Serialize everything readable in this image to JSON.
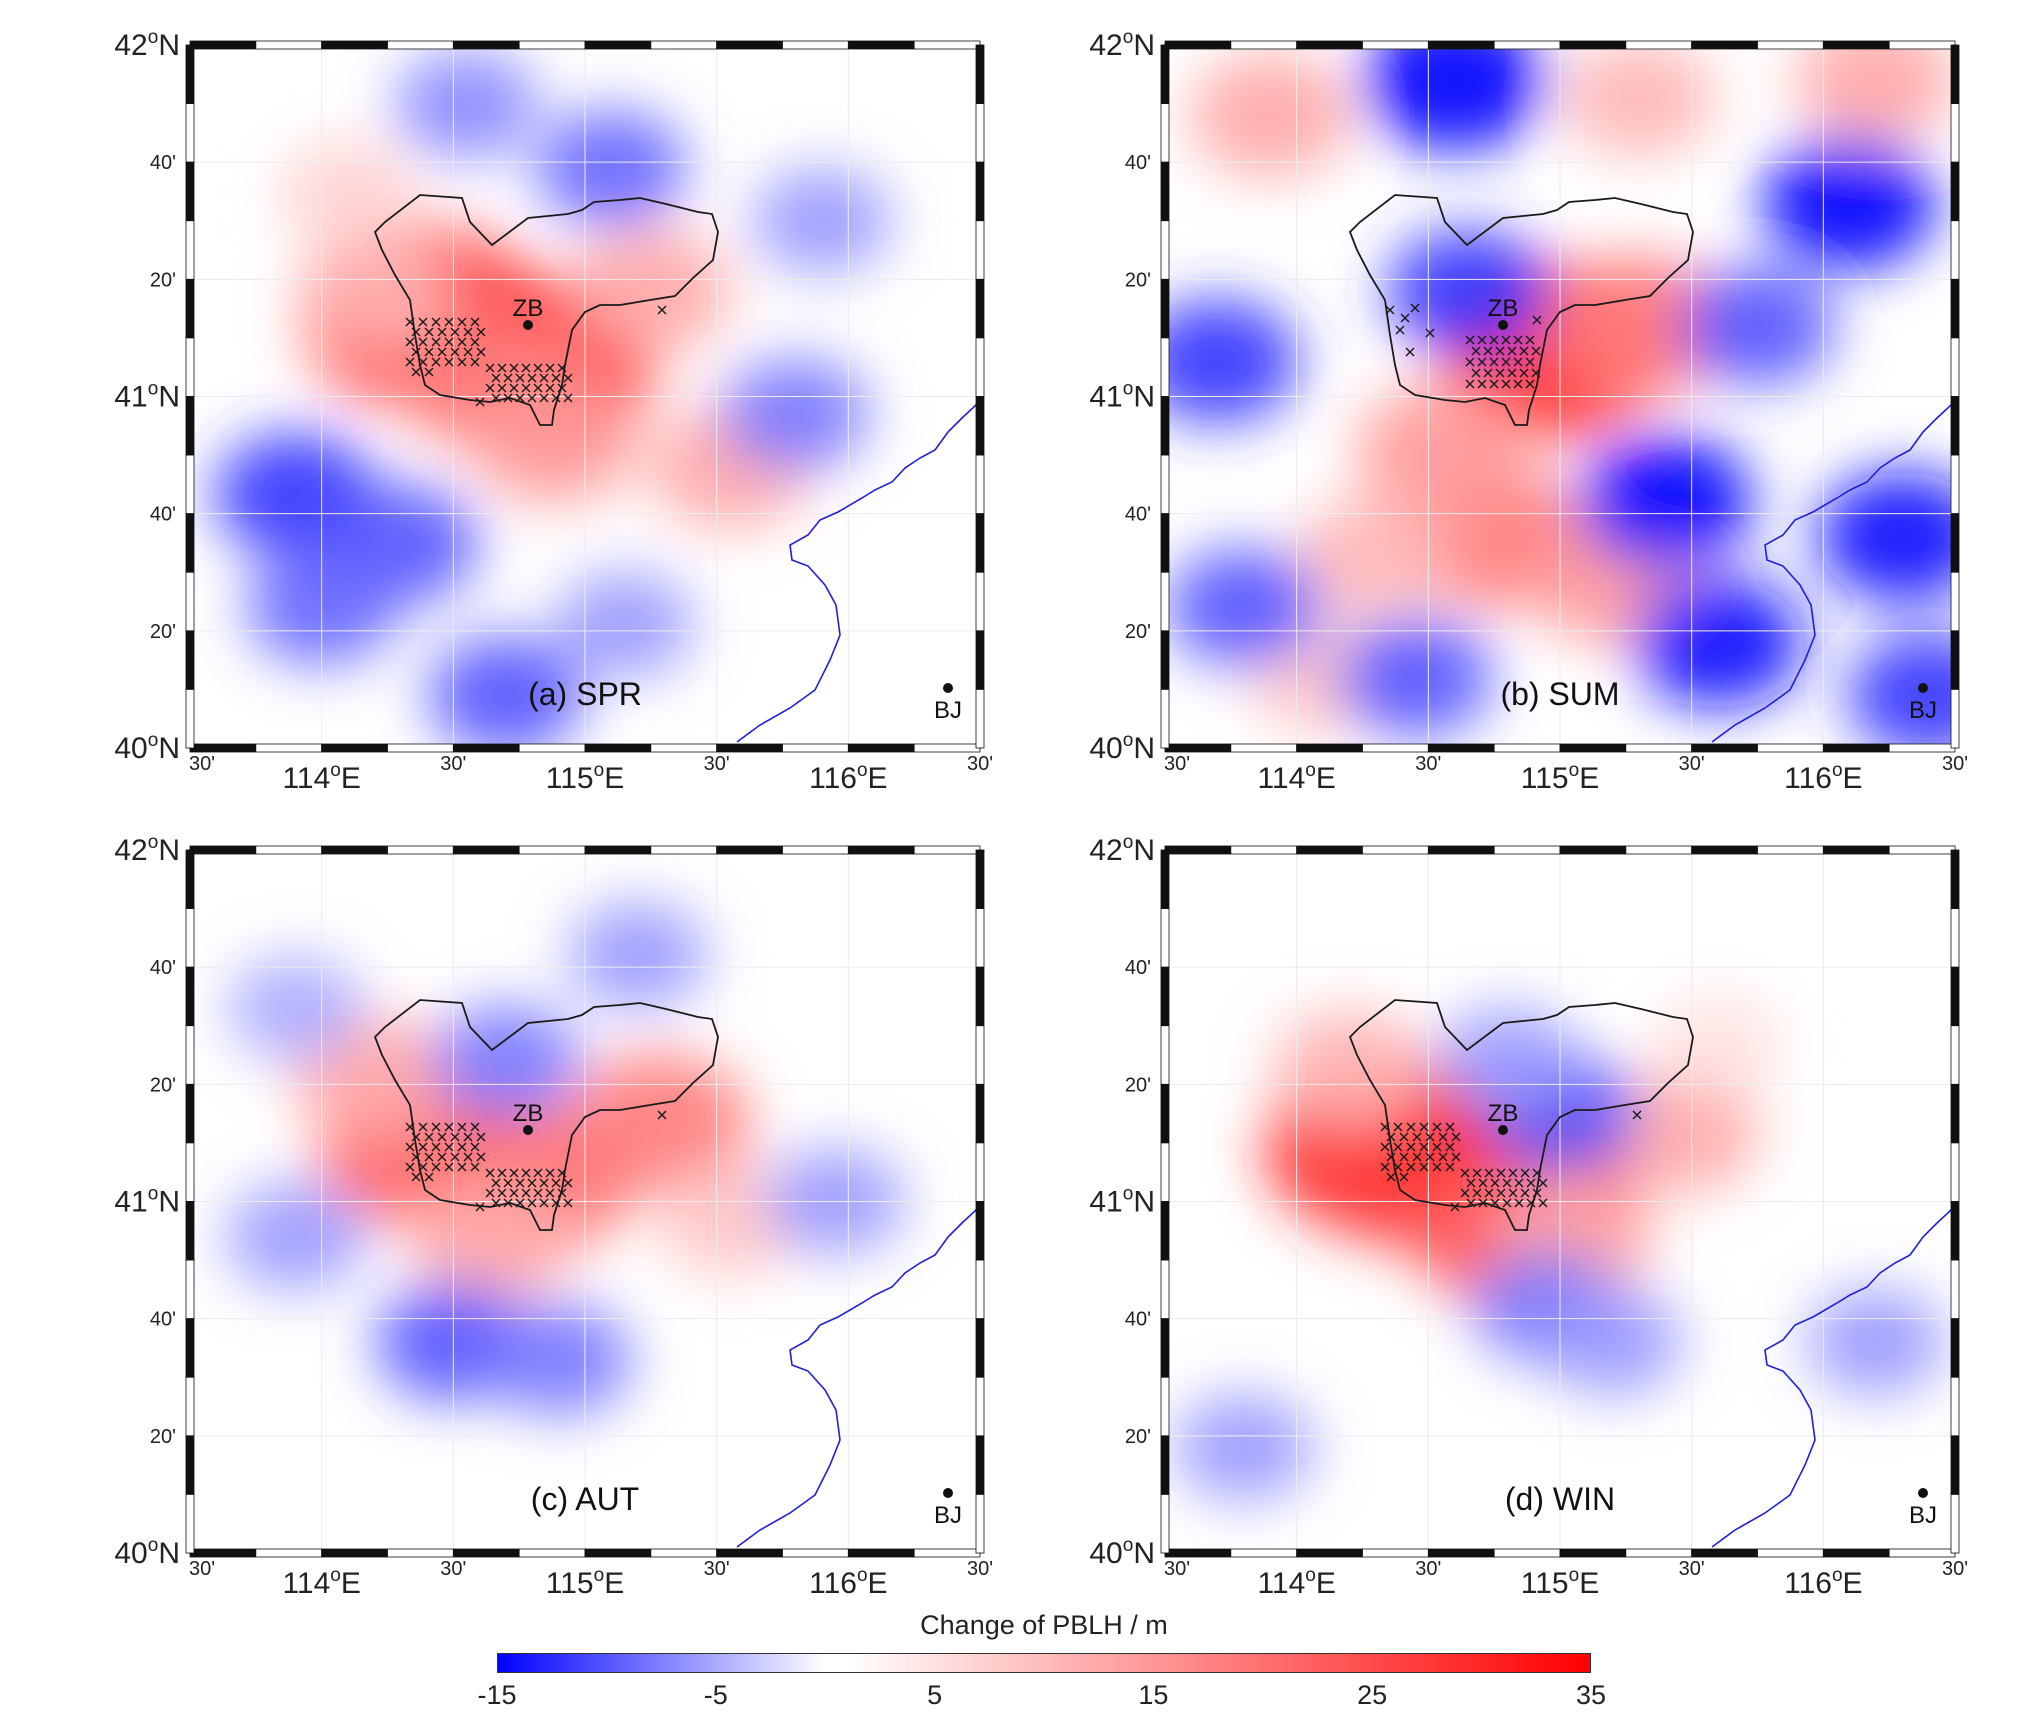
{
  "axes": {
    "lat_major": [
      "42",
      "41",
      "40"
    ],
    "lat_minor": [
      "40'",
      "20'",
      "40'",
      "20'"
    ],
    "lon_major": [
      "114",
      "115",
      "116"
    ],
    "lon_minor": [
      "30'",
      "30'",
      "30'",
      "30'"
    ],
    "deg": "o",
    "north": "N",
    "east": "E"
  },
  "cities": {
    "zb": "ZB",
    "bj": "BJ"
  },
  "panels": [
    {
      "label": "(a) SPR",
      "blobs": [
        {
          "lon": 114.37,
          "lat": 41.23,
          "value": 32
        },
        {
          "lon": 114.52,
          "lat": 41.2,
          "value": 24
        },
        {
          "lon": 114.83,
          "lat": 41.09,
          "value": 30
        },
        {
          "lon": 114.62,
          "lat": 41.06,
          "value": 18
        },
        {
          "lon": 114.88,
          "lat": 40.88,
          "value": 14
        },
        {
          "lon": 115.25,
          "lat": 41.3,
          "value": 12
        },
        {
          "lon": 115.55,
          "lat": 40.8,
          "value": 12
        },
        {
          "lon": 114.2,
          "lat": 41.3,
          "value": 10
        },
        {
          "lon": 114.1,
          "lat": 41.58,
          "value": 6
        },
        {
          "lon": 113.9,
          "lat": 40.72,
          "value": -12
        },
        {
          "lon": 114.3,
          "lat": 40.58,
          "value": -10
        },
        {
          "lon": 114.0,
          "lat": 40.4,
          "value": -9
        },
        {
          "lon": 115.1,
          "lat": 41.65,
          "value": -9
        },
        {
          "lon": 115.8,
          "lat": 40.95,
          "value": -8
        },
        {
          "lon": 115.9,
          "lat": 41.5,
          "value": -6
        },
        {
          "lon": 114.55,
          "lat": 41.83,
          "value": -7
        },
        {
          "lon": 114.7,
          "lat": 40.15,
          "value": -10
        },
        {
          "lon": 115.15,
          "lat": 40.35,
          "value": -6
        }
      ]
    },
    {
      "label": "(b) SUM",
      "blobs": [
        {
          "lon": 114.98,
          "lat": 41.13,
          "value": 30
        },
        {
          "lon": 114.75,
          "lat": 40.6,
          "value": 18
        },
        {
          "lon": 115.2,
          "lat": 40.48,
          "value": 14
        },
        {
          "lon": 114.55,
          "lat": 40.85,
          "value": 14
        },
        {
          "lon": 115.3,
          "lat": 41.2,
          "value": 18
        },
        {
          "lon": 113.9,
          "lat": 41.8,
          "value": 12
        },
        {
          "lon": 115.3,
          "lat": 41.85,
          "value": 10
        },
        {
          "lon": 116.2,
          "lat": 41.9,
          "value": 12
        },
        {
          "lon": 114.3,
          "lat": 40.55,
          "value": 10
        },
        {
          "lon": 114.1,
          "lat": 40.2,
          "value": 8
        },
        {
          "lon": 114.6,
          "lat": 41.9,
          "value": -18
        },
        {
          "lon": 115.4,
          "lat": 40.7,
          "value": -15
        },
        {
          "lon": 116.1,
          "lat": 41.55,
          "value": -15
        },
        {
          "lon": 113.7,
          "lat": 41.1,
          "value": -12
        },
        {
          "lon": 115.6,
          "lat": 40.3,
          "value": -14
        },
        {
          "lon": 116.3,
          "lat": 40.6,
          "value": -14
        },
        {
          "lon": 113.8,
          "lat": 40.4,
          "value": -10
        },
        {
          "lon": 114.65,
          "lat": 41.3,
          "value": -12
        },
        {
          "lon": 116.4,
          "lat": 40.15,
          "value": -12
        },
        {
          "lon": 114.45,
          "lat": 40.2,
          "value": -10
        },
        {
          "lon": 115.75,
          "lat": 41.2,
          "value": -10
        }
      ]
    },
    {
      "label": "(c) AUT",
      "blobs": [
        {
          "lon": 114.37,
          "lat": 41.15,
          "value": 22
        },
        {
          "lon": 114.82,
          "lat": 41.06,
          "value": 20
        },
        {
          "lon": 114.65,
          "lat": 40.9,
          "value": 12
        },
        {
          "lon": 115.28,
          "lat": 41.22,
          "value": 18
        },
        {
          "lon": 114.2,
          "lat": 41.35,
          "value": 12
        },
        {
          "lon": 115.55,
          "lat": 40.95,
          "value": 8
        },
        {
          "lon": 114.7,
          "lat": 41.4,
          "value": -8
        },
        {
          "lon": 114.5,
          "lat": 40.6,
          "value": -10
        },
        {
          "lon": 114.9,
          "lat": 40.55,
          "value": -8
        },
        {
          "lon": 113.9,
          "lat": 40.9,
          "value": -6
        },
        {
          "lon": 115.2,
          "lat": 41.7,
          "value": -6
        },
        {
          "lon": 115.95,
          "lat": 41.0,
          "value": -6
        },
        {
          "lon": 113.9,
          "lat": 41.55,
          "value": -5
        }
      ]
    },
    {
      "label": "(d) WIN",
      "blobs": [
        {
          "lon": 114.33,
          "lat": 41.16,
          "value": 32
        },
        {
          "lon": 114.45,
          "lat": 41.1,
          "value": 26
        },
        {
          "lon": 114.85,
          "lat": 41.04,
          "value": 32
        },
        {
          "lon": 114.8,
          "lat": 40.92,
          "value": 22
        },
        {
          "lon": 115.05,
          "lat": 40.9,
          "value": 12
        },
        {
          "lon": 115.45,
          "lat": 41.2,
          "value": 12
        },
        {
          "lon": 114.2,
          "lat": 41.38,
          "value": 10
        },
        {
          "lon": 115.0,
          "lat": 41.25,
          "value": -10
        },
        {
          "lon": 114.8,
          "lat": 41.4,
          "value": -6
        },
        {
          "lon": 114.95,
          "lat": 40.7,
          "value": -8
        },
        {
          "lon": 115.2,
          "lat": 40.6,
          "value": -6
        },
        {
          "lon": 113.8,
          "lat": 40.3,
          "value": -6
        },
        {
          "lon": 116.2,
          "lat": 40.6,
          "value": -6
        },
        {
          "lon": 115.6,
          "lat": 41.45,
          "value": 4
        }
      ]
    }
  ],
  "colorbar": {
    "title": "Change of PBLH / m",
    "ticks": [
      "-15",
      "-5",
      "5",
      "15",
      "25",
      "35"
    ],
    "min": -15,
    "max": 35,
    "colors": {
      "low": "#0000ff",
      "mid": "#ffffff",
      "high": "#ff0000"
    }
  },
  "colors": {
    "boundary": "#1a1a1a",
    "river": "#1f1fd6",
    "markers": "#1a1a1a"
  }
}
